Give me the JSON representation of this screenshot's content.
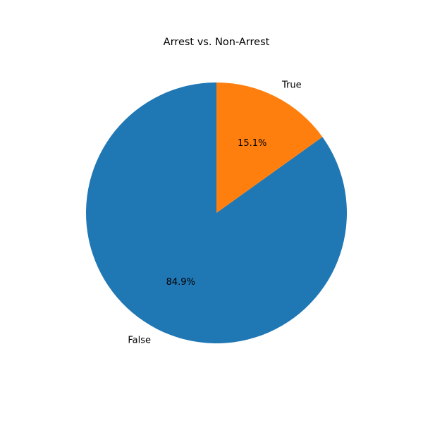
{
  "chart_data": {
    "type": "pie",
    "title": "Arrest vs. Non-Arrest",
    "labels": [
      "False",
      "True"
    ],
    "values": [
      84.9,
      15.1
    ],
    "percent_labels": [
      "84.9%",
      "15.1%"
    ],
    "colors": [
      "#1f77b4",
      "#ff7f0e"
    ],
    "start_angle_deg": 90,
    "direction": "counterclockwise"
  }
}
